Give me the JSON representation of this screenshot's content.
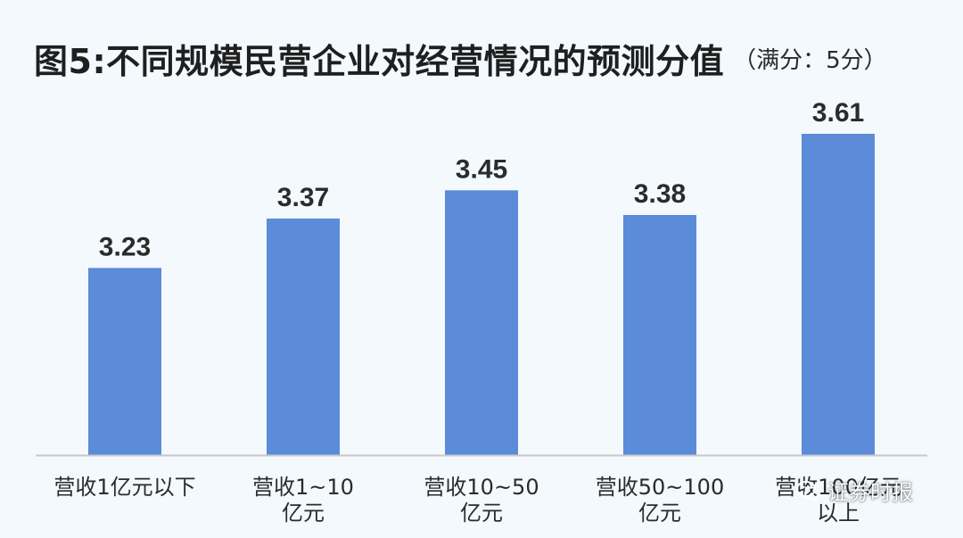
{
  "chart_data": {
    "type": "bar",
    "title": "图5:不同规模民营企业对经营情况的预测分值",
    "subtitle": "（满分：5分）",
    "categories": [
      [
        "营收1亿元以下"
      ],
      [
        "营收1~10",
        "亿元"
      ],
      [
        "营收10~50",
        "亿元"
      ],
      [
        "营收50~100",
        "亿元"
      ],
      [
        "营收100亿元",
        "以上"
      ]
    ],
    "values": [
      3.23,
      3.37,
      3.45,
      3.38,
      3.61
    ],
    "data_labels": [
      "3.23",
      "3.37",
      "3.45",
      "3.38",
      "3.61"
    ],
    "ylim": [
      2.7,
      3.7
    ],
    "grid": false,
    "bar_color": "#5b8bd9",
    "axis_color": "#c8c8c8"
  },
  "watermark": {
    "text": "证券时报",
    "icon": "wechat-icon"
  }
}
